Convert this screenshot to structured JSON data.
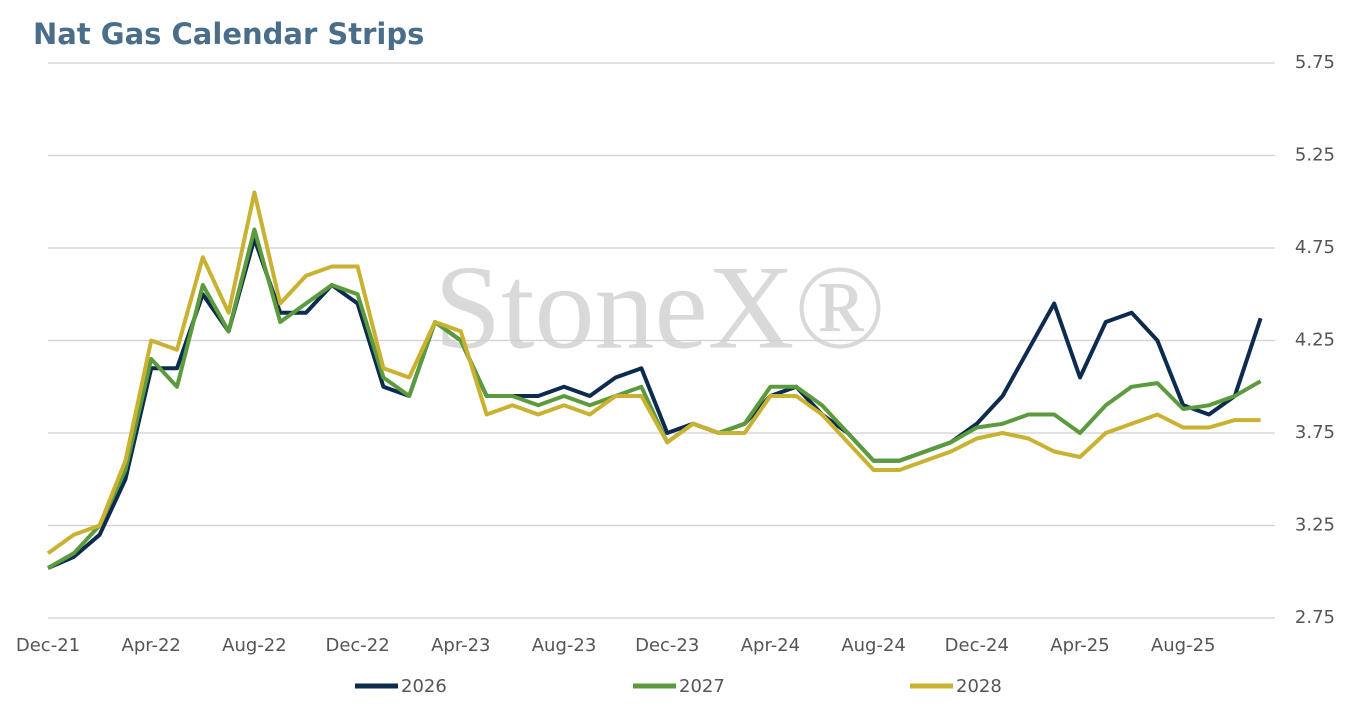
{
  "chart_data": {
    "type": "line",
    "title": "Nat Gas Calendar Strips",
    "watermark": "StoneX®",
    "categories": [
      "Dec-21",
      null,
      null,
      null,
      "Apr-22",
      null,
      null,
      null,
      "Aug-22",
      null,
      null,
      null,
      "Dec-22",
      null,
      null,
      null,
      "Apr-23",
      null,
      null,
      null,
      "Aug-23",
      null,
      null,
      null,
      "Dec-23",
      null,
      null,
      null,
      "Apr-24",
      null,
      null,
      null,
      "Aug-24",
      null,
      null,
      null,
      "Dec-24",
      null,
      null,
      null,
      "Apr-25",
      null,
      null,
      null,
      "Aug-25",
      null,
      null,
      null
    ],
    "series": [
      {
        "name": "2026",
        "color": "#0d2b4e",
        "values": [
          3.02,
          3.08,
          3.2,
          3.5,
          4.1,
          4.1,
          4.5,
          4.3,
          4.8,
          4.4,
          4.4,
          4.55,
          4.45,
          4.0,
          3.95,
          4.35,
          4.25,
          3.95,
          3.95,
          3.95,
          4.0,
          3.95,
          4.05,
          4.1,
          3.75,
          3.8,
          3.75,
          3.8,
          3.95,
          4.0,
          3.85,
          3.75,
          3.6,
          3.6,
          3.65,
          3.7,
          3.8,
          3.95,
          4.2,
          4.45,
          4.05,
          4.35,
          4.4,
          4.25,
          3.9,
          3.85,
          3.95,
          4.37
        ]
      },
      {
        "name": "2027",
        "color": "#5b9b3d",
        "values": [
          3.02,
          3.1,
          3.25,
          3.55,
          4.15,
          4.0,
          4.55,
          4.3,
          4.85,
          4.35,
          4.45,
          4.55,
          4.5,
          4.05,
          3.95,
          4.35,
          4.25,
          3.95,
          3.95,
          3.9,
          3.95,
          3.9,
          3.95,
          4.0,
          3.7,
          3.8,
          3.75,
          3.8,
          4.0,
          4.0,
          3.9,
          3.75,
          3.6,
          3.6,
          3.65,
          3.7,
          3.78,
          3.8,
          3.85,
          3.85,
          3.75,
          3.9,
          4.0,
          4.02,
          3.88,
          3.9,
          3.95,
          4.03
        ]
      },
      {
        "name": "2028",
        "color": "#c9b232",
        "values": [
          3.1,
          3.2,
          3.25,
          3.6,
          4.25,
          4.2,
          4.7,
          4.4,
          5.05,
          4.45,
          4.6,
          4.65,
          4.65,
          4.1,
          4.05,
          4.35,
          4.3,
          3.85,
          3.9,
          3.85,
          3.9,
          3.85,
          3.95,
          3.95,
          3.7,
          3.8,
          3.75,
          3.75,
          3.95,
          3.95,
          3.85,
          3.7,
          3.55,
          3.55,
          3.6,
          3.65,
          3.72,
          3.75,
          3.72,
          3.65,
          3.62,
          3.75,
          3.8,
          3.85,
          3.78,
          3.78,
          3.82,
          3.82
        ]
      }
    ],
    "ylim": [
      2.75,
      5.75
    ],
    "yticks": [
      2.75,
      3.25,
      3.75,
      4.25,
      4.75,
      5.25,
      5.75
    ],
    "grid": true,
    "legend": "bottom"
  }
}
